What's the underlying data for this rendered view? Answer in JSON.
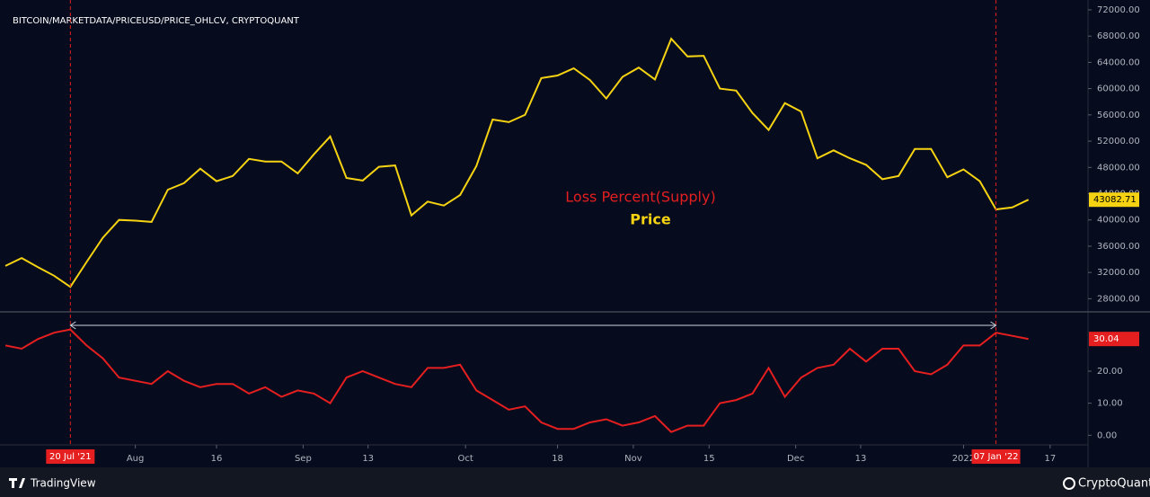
{
  "chart_data": [
    {
      "type": "line",
      "title": "BITCOIN/MARKETDATA/PRICEUSD/PRICE_OHLCV, CRYPTOQUANT",
      "x": [
        "2021-07-08",
        "2021-07-11",
        "2021-07-14",
        "2021-07-17",
        "2021-07-20",
        "2021-07-23",
        "2021-07-26",
        "2021-07-29",
        "2021-08-01",
        "2021-08-04",
        "2021-08-07",
        "2021-08-10",
        "2021-08-13",
        "2021-08-16",
        "2021-08-19",
        "2021-08-22",
        "2021-08-25",
        "2021-08-28",
        "2021-08-31",
        "2021-09-03",
        "2021-09-06",
        "2021-09-09",
        "2021-09-12",
        "2021-09-15",
        "2021-09-18",
        "2021-09-21",
        "2021-09-24",
        "2021-09-27",
        "2021-09-30",
        "2021-10-03",
        "2021-10-06",
        "2021-10-09",
        "2021-10-12",
        "2021-10-15",
        "2021-10-18",
        "2021-10-21",
        "2021-10-24",
        "2021-10-27",
        "2021-10-30",
        "2021-11-02",
        "2021-11-05",
        "2021-11-08",
        "2021-11-11",
        "2021-11-14",
        "2021-11-17",
        "2021-11-20",
        "2021-11-23",
        "2021-11-26",
        "2021-11-29",
        "2021-12-02",
        "2021-12-05",
        "2021-12-08",
        "2021-12-11",
        "2021-12-14",
        "2021-12-17",
        "2021-12-20",
        "2021-12-23",
        "2021-12-26",
        "2021-12-29",
        "2022-01-01",
        "2022-01-04",
        "2022-01-07",
        "2022-01-10",
        "2022-01-13"
      ],
      "series": [
        {
          "name": "Price",
          "color": "#f5d312",
          "values": [
            33000,
            34200,
            32800,
            31500,
            29800,
            33600,
            37300,
            40000,
            39900,
            39700,
            44600,
            45600,
            47800,
            45900,
            46700,
            49300,
            48900,
            48900,
            47100,
            50000,
            52700,
            46400,
            46000,
            48100,
            48300,
            40700,
            42800,
            42200,
            43800,
            48200,
            55300,
            54900,
            56000,
            61600,
            62000,
            63100,
            61300,
            58500,
            61800,
            63200,
            61400,
            67600,
            64900,
            65000,
            60000,
            59700,
            56300,
            53700,
            57800,
            56500,
            49400,
            50600,
            49400,
            48400,
            46200,
            46700,
            50800,
            50800,
            46500,
            47700,
            45900,
            41600,
            41900,
            43082.71
          ]
        }
      ],
      "xlim": [
        "2021-07-07",
        "2022-01-24"
      ],
      "ylim": [
        26000,
        73500
      ],
      "yticks": [
        {
          "value": 28000,
          "label": "28000.00"
        },
        {
          "value": 32000,
          "label": "32000.00"
        },
        {
          "value": 36000,
          "label": "36000.00"
        },
        {
          "value": 40000,
          "label": "40000.00"
        },
        {
          "value": 44000,
          "label": "44000.00"
        },
        {
          "value": 48000,
          "label": "48000.00"
        },
        {
          "value": 52000,
          "label": "52000.00"
        },
        {
          "value": 56000,
          "label": "56000.00"
        },
        {
          "value": 60000,
          "label": "60000.00"
        },
        {
          "value": 64000,
          "label": "64000.00"
        },
        {
          "value": 68000,
          "label": "68000.00"
        },
        {
          "value": 72000,
          "label": "72000.00"
        }
      ],
      "grid": false
    },
    {
      "type": "line",
      "x": [
        "2021-07-08",
        "2021-07-11",
        "2021-07-14",
        "2021-07-17",
        "2021-07-20",
        "2021-07-23",
        "2021-07-26",
        "2021-07-29",
        "2021-08-01",
        "2021-08-04",
        "2021-08-07",
        "2021-08-10",
        "2021-08-13",
        "2021-08-16",
        "2021-08-19",
        "2021-08-22",
        "2021-08-25",
        "2021-08-28",
        "2021-08-31",
        "2021-09-03",
        "2021-09-06",
        "2021-09-09",
        "2021-09-12",
        "2021-09-15",
        "2021-09-18",
        "2021-09-21",
        "2021-09-24",
        "2021-09-27",
        "2021-09-30",
        "2021-10-03",
        "2021-10-06",
        "2021-10-09",
        "2021-10-12",
        "2021-10-15",
        "2021-10-18",
        "2021-10-21",
        "2021-10-24",
        "2021-10-27",
        "2021-10-30",
        "2021-11-02",
        "2021-11-05",
        "2021-11-08",
        "2021-11-11",
        "2021-11-14",
        "2021-11-17",
        "2021-11-20",
        "2021-11-23",
        "2021-11-26",
        "2021-11-29",
        "2021-12-02",
        "2021-12-05",
        "2021-12-08",
        "2021-12-11",
        "2021-12-14",
        "2021-12-17",
        "2021-12-20",
        "2021-12-23",
        "2021-12-26",
        "2021-12-29",
        "2022-01-01",
        "2022-01-04",
        "2022-01-07",
        "2022-01-10",
        "2022-01-13"
      ],
      "series": [
        {
          "name": "Loss Percent(Supply)",
          "color": "#e51f1f",
          "values": [
            28,
            27,
            30,
            32,
            33,
            28,
            24,
            18,
            17,
            16,
            20,
            17,
            15,
            16,
            16,
            13,
            15,
            12,
            14,
            13,
            10,
            18,
            20,
            18,
            16,
            15,
            21,
            21,
            22,
            14,
            11,
            8,
            9,
            4,
            2,
            2,
            4,
            5,
            3,
            4,
            6,
            1,
            3,
            3,
            10,
            11,
            13,
            21,
            12,
            18,
            21,
            22,
            27,
            23,
            27,
            27,
            20,
            19,
            22,
            28,
            28,
            32,
            31,
            30.04
          ]
        }
      ],
      "xlim": [
        "2021-07-07",
        "2022-01-24"
      ],
      "ylim": [
        -3,
        38.5
      ],
      "yticks": [
        {
          "value": 0,
          "label": "0.00"
        },
        {
          "value": 10,
          "label": "10.00"
        },
        {
          "value": 20,
          "label": "20.00"
        }
      ],
      "xticks": [
        {
          "value": "2021-08-01",
          "label": "Aug"
        },
        {
          "value": "2021-08-16",
          "label": "16"
        },
        {
          "value": "2021-09-01",
          "label": "Sep"
        },
        {
          "value": "2021-09-13",
          "label": "13"
        },
        {
          "value": "2021-10-01",
          "label": "Oct"
        },
        {
          "value": "2021-10-18",
          "label": "18"
        },
        {
          "value": "2021-11-01",
          "label": "Nov"
        },
        {
          "value": "2021-11-15",
          "label": "15"
        },
        {
          "value": "2021-12-01",
          "label": "Dec"
        },
        {
          "value": "2021-12-13",
          "label": "13"
        },
        {
          "value": "2022-01-01",
          "label": "2022"
        },
        {
          "value": "2022-01-17",
          "label": "17"
        }
      ],
      "annotations": [
        {
          "x": "2021-07-20",
          "label": "20 Jul '21"
        },
        {
          "x": "2022-01-07",
          "label": "07 Jan '22"
        }
      ],
      "grid": false
    }
  ],
  "footer": {
    "left": "TradingView",
    "right": "CryptoQuant"
  }
}
